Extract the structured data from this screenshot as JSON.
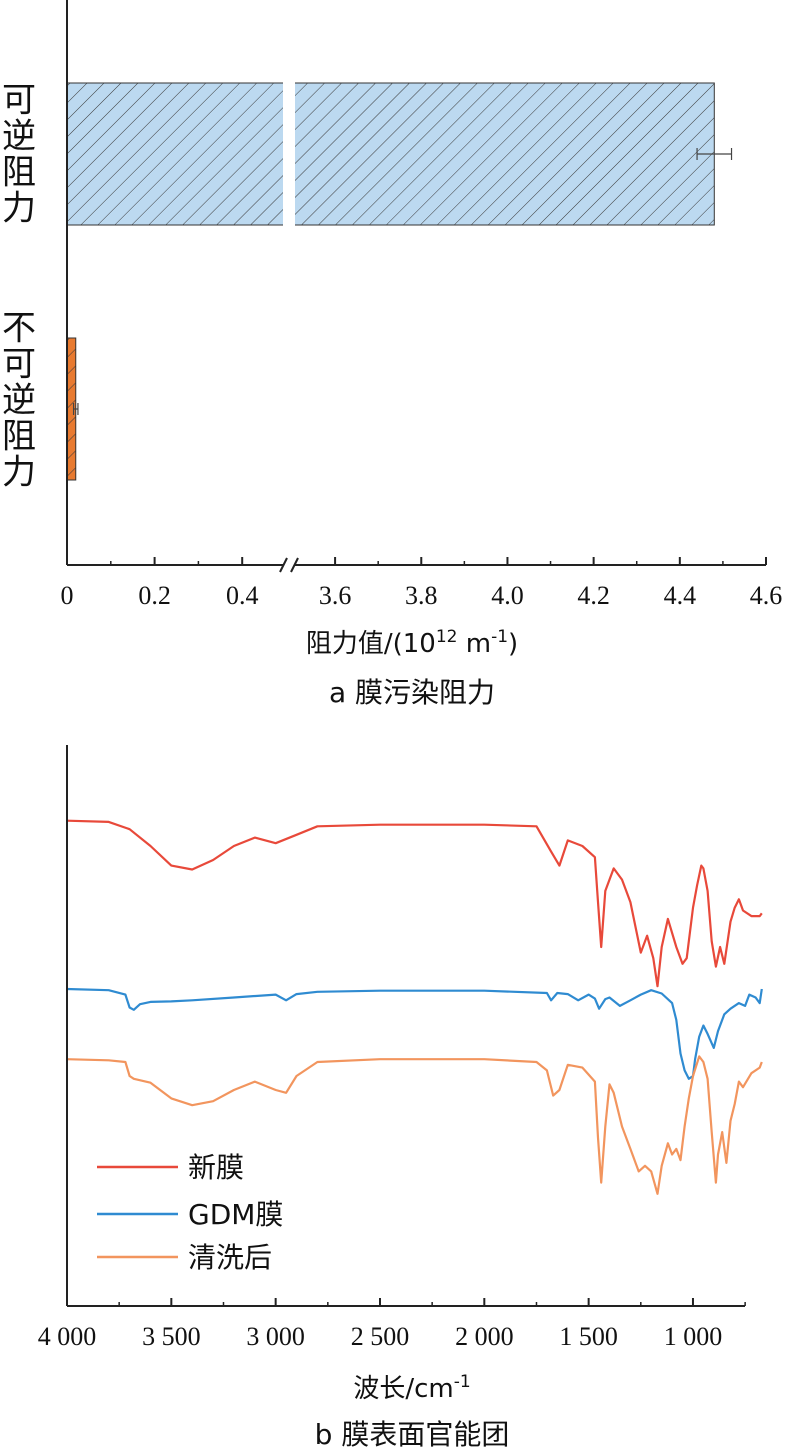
{
  "chart_data": [
    {
      "type": "bar",
      "orientation": "horizontal",
      "categories": [
        "可逆阻力",
        "不可逆阻力"
      ],
      "values": [
        4.48,
        0.02
      ],
      "errors": [
        0.04,
        0.005
      ],
      "colors": [
        "#bcd9f0",
        "#e87a30"
      ],
      "hatch": "diagonal",
      "xlabel_parts": {
        "prefix": "阻力值/(10",
        "exp1": "12",
        "mid": " m",
        "exp2": "-1",
        "suffix": ")"
      },
      "xlim": [
        0,
        4.6
      ],
      "axis_break": [
        0.5,
        3.5
      ],
      "ticks": [
        0,
        0.2,
        0.4,
        3.6,
        3.8,
        4.0,
        4.2,
        4.4,
        4.6
      ],
      "tick_labels": [
        "0",
        "0.2",
        "0.4",
        "3.6",
        "3.8",
        "4.0",
        "4.2",
        "4.4",
        "4.6"
      ],
      "caption": "a 膜污染阻力"
    },
    {
      "type": "line",
      "xlabel_parts": {
        "prefix": "波长/cm",
        "exp": "-1"
      },
      "xlim": [
        4000,
        650
      ],
      "xticks": [
        4000,
        3500,
        3000,
        2500,
        2000,
        1500,
        1000
      ],
      "xtick_labels": [
        "4 000",
        "3 500",
        "3 000",
        "2 500",
        "2 000",
        "1 500",
        "1 000"
      ],
      "ylim": [
        0,
        100
      ],
      "series": [
        {
          "name": "新膜",
          "color": "#e8493a",
          "x": [
            4000,
            3800,
            3700,
            3600,
            3500,
            3400,
            3300,
            3200,
            3100,
            3000,
            2900,
            2800,
            2500,
            2000,
            1750,
            1680,
            1640,
            1600,
            1530,
            1470,
            1455,
            1440,
            1420,
            1380,
            1340,
            1300,
            1250,
            1220,
            1190,
            1170,
            1150,
            1120,
            1080,
            1050,
            1030,
            1000,
            980,
            960,
            950,
            930,
            910,
            890,
            870,
            850,
            820,
            800,
            780,
            760,
            720,
            680,
            670
          ],
          "y": [
            86.5,
            86.3,
            85,
            82,
            78.5,
            77.8,
            79.5,
            82,
            83.5,
            82.5,
            84,
            85.5,
            85.8,
            85.8,
            85.5,
            81,
            78.5,
            83,
            82,
            80,
            72,
            64,
            74,
            78,
            76,
            72,
            63,
            66,
            62,
            57,
            64,
            69,
            64,
            61,
            62,
            71,
            75,
            78.5,
            78,
            74,
            65,
            60.5,
            64,
            61,
            68.5,
            71,
            72.5,
            70.5,
            69.5,
            69.5,
            70
          ]
        },
        {
          "name": "GDM膜",
          "color": "#2f8bd1",
          "x": [
            4000,
            3800,
            3720,
            3700,
            3680,
            3650,
            3600,
            3500,
            3400,
            3200,
            3000,
            2950,
            2900,
            2800,
            2500,
            2000,
            1700,
            1680,
            1650,
            1600,
            1550,
            1500,
            1470,
            1450,
            1420,
            1400,
            1350,
            1300,
            1250,
            1200,
            1150,
            1100,
            1080,
            1060,
            1040,
            1020,
            1000,
            990,
            970,
            950,
            930,
            900,
            880,
            850,
            820,
            780,
            750,
            730,
            700,
            680,
            670
          ],
          "y": [
            56.5,
            56.3,
            55.5,
            53.2,
            52.8,
            53.8,
            54.2,
            54.3,
            54.5,
            55,
            55.5,
            54.5,
            55.6,
            56,
            56.2,
            56.2,
            55.8,
            54.5,
            55.8,
            55.6,
            54.5,
            55.5,
            54.8,
            53,
            54.7,
            55,
            53.5,
            54.5,
            55.5,
            56.3,
            55.7,
            54,
            51,
            45,
            42,
            40.5,
            41,
            44,
            48,
            50,
            48.5,
            46,
            49,
            52,
            53,
            54,
            53.5,
            55.5,
            55,
            54,
            56.5
          ]
        },
        {
          "name": "清洗后",
          "color": "#f2955e",
          "x": [
            4000,
            3800,
            3720,
            3700,
            3680,
            3600,
            3500,
            3400,
            3300,
            3200,
            3100,
            3000,
            2950,
            2900,
            2800,
            2500,
            2000,
            1750,
            1700,
            1670,
            1640,
            1600,
            1530,
            1470,
            1455,
            1440,
            1420,
            1400,
            1380,
            1340,
            1300,
            1260,
            1230,
            1200,
            1170,
            1150,
            1120,
            1100,
            1080,
            1060,
            1040,
            1020,
            1000,
            970,
            950,
            930,
            910,
            890,
            880,
            860,
            840,
            820,
            800,
            780,
            760,
            720,
            680,
            670
          ],
          "y": [
            44,
            43.8,
            43.5,
            41,
            40.5,
            39.8,
            37,
            35.8,
            36.5,
            38.5,
            40,
            38.5,
            38,
            41,
            43.5,
            44,
            44,
            43.5,
            42,
            37.5,
            38.5,
            43,
            42.5,
            40,
            30,
            22,
            32,
            39.5,
            38,
            32,
            28,
            24,
            25,
            24,
            20,
            25,
            29,
            27,
            28,
            26,
            32,
            37,
            41,
            44.5,
            43.5,
            40.5,
            31,
            22,
            27,
            31,
            25.5,
            33,
            36,
            40,
            39,
            41.5,
            42.5,
            43.5
          ]
        }
      ],
      "legend": {
        "position": "bottom-left",
        "entries": [
          "新膜",
          "GDM膜",
          "清洗后"
        ]
      },
      "caption": "b 膜表面官能团"
    }
  ]
}
